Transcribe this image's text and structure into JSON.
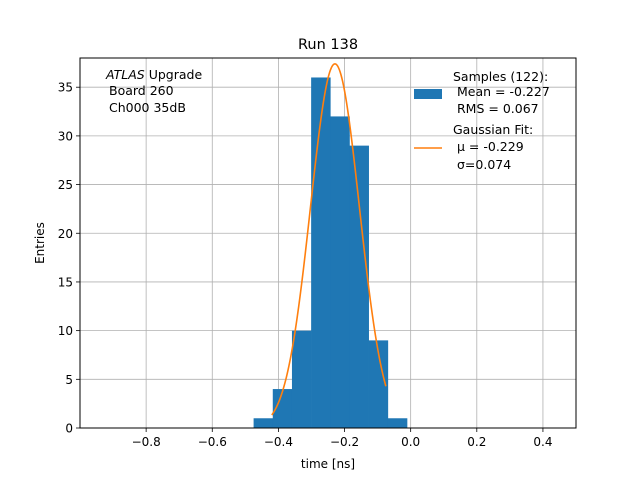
{
  "chart_data": {
    "type": "bar",
    "title": "Run 138",
    "xlabel": "time [ns]",
    "ylabel": "Entries",
    "xlim": [
      -1.0,
      0.5
    ],
    "ylim": [
      0,
      38
    ],
    "grid": true,
    "xticks": [
      -0.8,
      -0.6,
      -0.4,
      -0.2,
      0.0,
      0.2,
      0.4
    ],
    "xtick_labels": [
      "−0.8",
      "−0.6",
      "−0.4",
      "−0.2",
      "0.0",
      "0.2",
      "0.4"
    ],
    "yticks": [
      0,
      5,
      10,
      15,
      20,
      25,
      30,
      35
    ],
    "yticks_labels": [
      "0",
      "5",
      "10",
      "15",
      "20",
      "25",
      "30",
      "35"
    ],
    "annotation": {
      "experiment": "ATLAS",
      "experiment_suffix": " Upgrade",
      "line2": "Board 260",
      "line3": "Ch000 35dB"
    },
    "histogram": {
      "name": "Samples (122):",
      "color": "#1f77b4",
      "bin_edges": [
        -0.475,
        -0.417,
        -0.359,
        -0.301,
        -0.243,
        -0.185,
        -0.127,
        -0.069,
        -0.011
      ],
      "counts": [
        1,
        4,
        10,
        36,
        32,
        29,
        9,
        1
      ],
      "stats": [
        "Mean = -0.227",
        "RMS = 0.067"
      ]
    },
    "fit": {
      "name": "Gaussian Fit:",
      "color": "#ff7f0e",
      "mu": -0.229,
      "sigma": 0.074,
      "amplitude": 37.4,
      "x_range": [
        -0.42,
        -0.075
      ],
      "mu_label": "μ = -0.229",
      "sigma_label": "σ=0.074"
    },
    "legend_position": "top-right"
  }
}
